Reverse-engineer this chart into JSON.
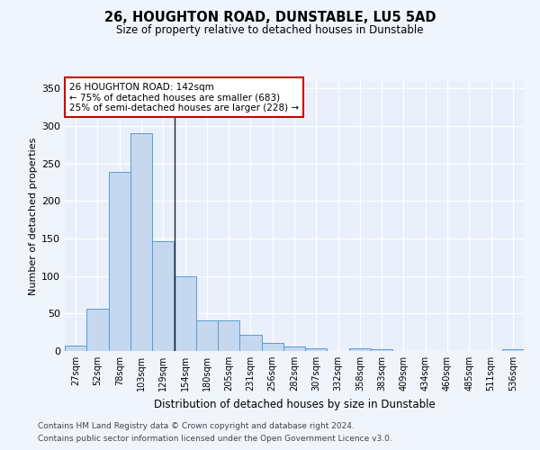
{
  "title1": "26, HOUGHTON ROAD, DUNSTABLE, LU5 5AD",
  "title2": "Size of property relative to detached houses in Dunstable",
  "xlabel": "Distribution of detached houses by size in Dunstable",
  "ylabel": "Number of detached properties",
  "bar_color": "#c5d8f0",
  "bar_edge_color": "#5b9bd5",
  "bg_color": "#eaf0fb",
  "grid_color": "#ffffff",
  "fig_bg_color": "#f0f4fc",
  "categories": [
    "27sqm",
    "52sqm",
    "78sqm",
    "103sqm",
    "129sqm",
    "154sqm",
    "180sqm",
    "205sqm",
    "231sqm",
    "256sqm",
    "282sqm",
    "307sqm",
    "332sqm",
    "358sqm",
    "383sqm",
    "409sqm",
    "434sqm",
    "460sqm",
    "485sqm",
    "511sqm",
    "536sqm"
  ],
  "values": [
    7,
    56,
    239,
    291,
    146,
    100,
    41,
    41,
    22,
    11,
    6,
    4,
    0,
    4,
    3,
    0,
    0,
    0,
    0,
    0,
    3
  ],
  "ylim": [
    0,
    360
  ],
  "yticks": [
    0,
    50,
    100,
    150,
    200,
    250,
    300,
    350
  ],
  "annotation_text": "26 HOUGHTON ROAD: 142sqm\n← 75% of detached houses are smaller (683)\n25% of semi-detached houses are larger (228) →",
  "vline_color": "#222222",
  "annot_box_color": "#ffffff",
  "annot_box_edge": "#cc0000",
  "property_size_sqm": 142,
  "footnote1": "Contains HM Land Registry data © Crown copyright and database right 2024.",
  "footnote2": "Contains public sector information licensed under the Open Government Licence v3.0."
}
